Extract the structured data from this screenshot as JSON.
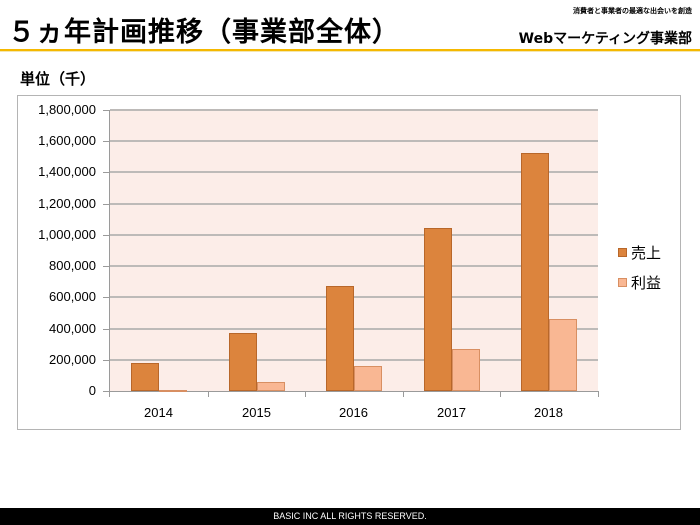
{
  "header": {
    "title": "５ヵ年計画推移（事業部全体）",
    "tagline": "消費者と事業者の最適な出会いを創造",
    "department": "Webマーケティング事業部",
    "accent_color": "#f5b800"
  },
  "unit_label": "単位（千）",
  "footer": {
    "text": "BASIC INC ALL RIGHTS RESERVED."
  },
  "chart_data": {
    "type": "bar",
    "title": "",
    "xlabel": "",
    "ylabel": "単位（千）",
    "categories": [
      "2014",
      "2015",
      "2016",
      "2017",
      "2018"
    ],
    "series": [
      {
        "name": "売上",
        "color": "#dc843d",
        "values": [
          180000,
          370000,
          675000,
          1045000,
          1525000
        ]
      },
      {
        "name": "利益",
        "color": "#f9b793",
        "values": [
          5000,
          55000,
          158000,
          270000,
          462000
        ]
      }
    ],
    "ylim": [
      0,
      1800000
    ],
    "yticks": [
      "0",
      "200,000",
      "400,000",
      "600,000",
      "800,000",
      "1,000,000",
      "1,200,000",
      "1,400,000",
      "1,600,000",
      "1,800,000"
    ],
    "grid": true,
    "legend_position": "right",
    "plot_background": "#fcede8"
  }
}
